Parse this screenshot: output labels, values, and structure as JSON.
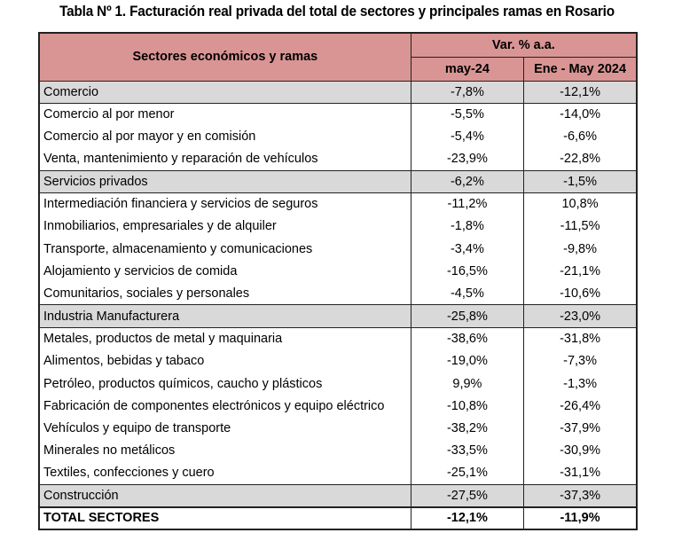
{
  "title": "Tabla Nº 1. Facturación real privada del total de sectores y principales ramas en Rosario",
  "header": {
    "col1": "Sectores económicos y ramas",
    "group": "Var. % a.a.",
    "col2": "may-24",
    "col3": "Ene - May 2024"
  },
  "colors": {
    "header_bg": "#d99594",
    "section_bg": "#d9d9d9"
  },
  "rows": [
    {
      "label": "Comercio",
      "may": "-7,8%",
      "ytd": "-12,1%",
      "type": "section"
    },
    {
      "label": "Comercio al por menor",
      "may": "-5,5%",
      "ytd": "-14,0%"
    },
    {
      "label": "Comercio al por mayor y en comisión",
      "may": "-5,4%",
      "ytd": "-6,6%"
    },
    {
      "label": "Venta, mantenimiento y reparación de vehículos",
      "may": "-23,9%",
      "ytd": "-22,8%"
    },
    {
      "label": "Servicios privados",
      "may": "-6,2%",
      "ytd": "-1,5%",
      "type": "section"
    },
    {
      "label": "Intermediación financiera y servicios de seguros",
      "may": "-11,2%",
      "ytd": "10,8%"
    },
    {
      "label": "Inmobiliarios, empresariales y de alquiler",
      "may": "-1,8%",
      "ytd": "-11,5%"
    },
    {
      "label": "Transporte, almacenamiento y comunicaciones",
      "may": "-3,4%",
      "ytd": "-9,8%"
    },
    {
      "label": "Alojamiento y servicios de comida",
      "may": "-16,5%",
      "ytd": "-21,1%"
    },
    {
      "label": "Comunitarios, sociales y personales",
      "may": "-4,5%",
      "ytd": "-10,6%"
    },
    {
      "label": "Industria Manufacturera",
      "may": "-25,8%",
      "ytd": "-23,0%",
      "type": "section"
    },
    {
      "label": "Metales, productos de metal y maquinaria",
      "may": "-38,6%",
      "ytd": "-31,8%"
    },
    {
      "label": "Alimentos, bebidas y tabaco",
      "may": "-19,0%",
      "ytd": "-7,3%"
    },
    {
      "label": "Petróleo, productos químicos, caucho y plásticos",
      "may": "9,9%",
      "ytd": "-1,3%"
    },
    {
      "label": "Fabricación de componentes electrónicos y equipo eléctrico",
      "may": "-10,8%",
      "ytd": "-26,4%"
    },
    {
      "label": "Vehículos y equipo de transporte",
      "may": "-38,2%",
      "ytd": "-37,9%"
    },
    {
      "label": "Minerales no metálicos",
      "may": "-33,5%",
      "ytd": "-30,9%"
    },
    {
      "label": "Textiles, confecciones y cuero",
      "may": "-25,1%",
      "ytd": "-31,1%"
    },
    {
      "label": "Construcción",
      "may": "-27,5%",
      "ytd": "-37,3%",
      "type": "section"
    },
    {
      "label": "TOTAL SECTORES",
      "may": "-12,1%",
      "ytd": "-11,9%",
      "type": "total"
    }
  ]
}
